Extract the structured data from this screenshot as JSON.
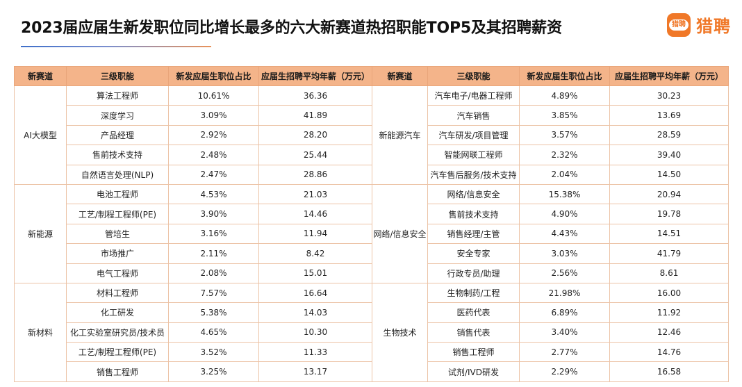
{
  "title": "2023届应届生新发职位同比增长最多的六大新赛道热招职能TOP5及其招聘薪资",
  "logo": {
    "badge_text": "猎聘",
    "brand_text": "猎聘"
  },
  "colors": {
    "header_bg": "#f4b48a",
    "brand": "#f07828",
    "border": "#ecc3a6"
  },
  "chart_data": {
    "type": "table",
    "columns": [
      "新赛道",
      "三级职能",
      "新发应届生职位占比",
      "应届生招聘平均年薪（万元）",
      "新赛道",
      "三级职能",
      "新发应届生职位占比",
      "应届生招聘平均年薪（万元）"
    ],
    "left_groups": [
      {
        "track": "AI大模型",
        "rows": [
          {
            "function": "算法工程师",
            "share": "10.61%",
            "salary": "36.36"
          },
          {
            "function": "深度学习",
            "share": "3.09%",
            "salary": "41.89"
          },
          {
            "function": "产品经理",
            "share": "2.92%",
            "salary": "28.20"
          },
          {
            "function": "售前技术支持",
            "share": "2.48%",
            "salary": "25.44"
          },
          {
            "function": "自然语言处理(NLP)",
            "share": "2.47%",
            "salary": "28.86"
          }
        ]
      },
      {
        "track": "新能源",
        "rows": [
          {
            "function": "电池工程师",
            "share": "4.53%",
            "salary": "21.03"
          },
          {
            "function": "工艺/制程工程师(PE)",
            "share": "3.90%",
            "salary": "14.46"
          },
          {
            "function": "管培生",
            "share": "3.16%",
            "salary": "11.94"
          },
          {
            "function": "市场推广",
            "share": "2.11%",
            "salary": "8.42"
          },
          {
            "function": "电气工程师",
            "share": "2.08%",
            "salary": "15.01"
          }
        ]
      },
      {
        "track": "新材料",
        "rows": [
          {
            "function": "材料工程师",
            "share": "7.57%",
            "salary": "16.64"
          },
          {
            "function": "化工研发",
            "share": "5.38%",
            "salary": "14.03"
          },
          {
            "function": "化工实验室研究员/技术员",
            "share": "4.65%",
            "salary": "10.30"
          },
          {
            "function": "工艺/制程工程师(PE)",
            "share": "3.52%",
            "salary": "11.33"
          },
          {
            "function": "销售工程师",
            "share": "3.25%",
            "salary": "13.17"
          }
        ]
      }
    ],
    "right_groups": [
      {
        "track": "新能源汽车",
        "rows": [
          {
            "function": "汽车电子/电器工程师",
            "share": "4.89%",
            "salary": "30.23"
          },
          {
            "function": "汽车销售",
            "share": "3.85%",
            "salary": "13.69"
          },
          {
            "function": "汽车研发/项目管理",
            "share": "3.57%",
            "salary": "28.59"
          },
          {
            "function": "智能网联工程师",
            "share": "2.32%",
            "salary": "39.40"
          },
          {
            "function": "汽车售后服务/技术支持",
            "share": "2.04%",
            "salary": "14.50"
          }
        ]
      },
      {
        "track": "网络/信息安全",
        "rows": [
          {
            "function": "网络/信息安全",
            "share": "15.38%",
            "salary": "20.94"
          },
          {
            "function": "售前技术支持",
            "share": "4.90%",
            "salary": "19.78"
          },
          {
            "function": "销售经理/主管",
            "share": "4.43%",
            "salary": "14.51"
          },
          {
            "function": "安全专家",
            "share": "3.03%",
            "salary": "41.79"
          },
          {
            "function": "行政专员/助理",
            "share": "2.56%",
            "salary": "8.61"
          }
        ]
      },
      {
        "track": "生物技术",
        "rows": [
          {
            "function": "生物制药/工程",
            "share": "21.98%",
            "salary": "16.00"
          },
          {
            "function": "医药代表",
            "share": "6.89%",
            "salary": "11.92"
          },
          {
            "function": "销售代表",
            "share": "3.40%",
            "salary": "12.46"
          },
          {
            "function": "销售工程师",
            "share": "2.77%",
            "salary": "14.76"
          },
          {
            "function": "试剂/IVD研发",
            "share": "2.29%",
            "salary": "16.58"
          }
        ]
      }
    ]
  }
}
